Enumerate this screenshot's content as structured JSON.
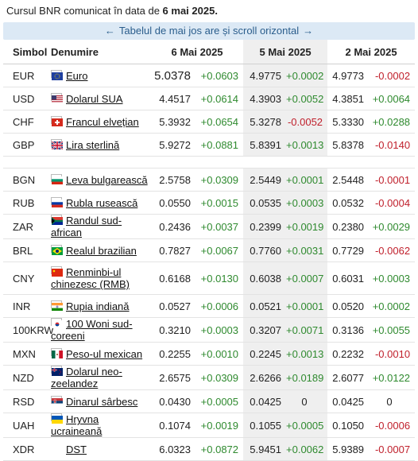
{
  "caption": {
    "prefix": "Cursul BNR comunicat în data de ",
    "date": "6 mai 2025."
  },
  "scroll_note": {
    "left_arrow": "←",
    "text": "Tabelul de mai jos are și scroll orizontal",
    "right_arrow": "→"
  },
  "headers": {
    "symbol": "Simbol",
    "name": "Denumire",
    "d1": "6 Mai 2025",
    "d2": "5 Mai 2025",
    "d3": "2 Mai 2025"
  },
  "group1": [
    {
      "sym": "EUR",
      "name": "Euro",
      "flag": "eu-flag",
      "v1": "5.0378",
      "c1": "+0.0603",
      "v2": "4.9775",
      "c2": "+0.0002",
      "v3": "4.9773",
      "c3": "-0.0002"
    },
    {
      "sym": "USD",
      "name": "Dolarul SUA",
      "flag": "us-flag",
      "v1": "4.4517",
      "c1": "+0.0614",
      "v2": "4.3903",
      "c2": "+0.0052",
      "v3": "4.3851",
      "c3": "+0.0064"
    },
    {
      "sym": "CHF",
      "name": "Francul elvețian",
      "flag": "ch-flag",
      "v1": "5.3932",
      "c1": "+0.0654",
      "v2": "5.3278",
      "c2": "-0.0052",
      "v3": "5.3330",
      "c3": "+0.0288"
    },
    {
      "sym": "GBP",
      "name": "Lira sterlină",
      "flag": "gb-flag",
      "v1": "5.9272",
      "c1": "+0.0881",
      "v2": "5.8391",
      "c2": "+0.0013",
      "v3": "5.8378",
      "c3": "-0.0140"
    }
  ],
  "group2": [
    {
      "sym": "BGN",
      "name": "Leva bulgarească",
      "flag": "bg-flag",
      "v1": "2.5758",
      "c1": "+0.0309",
      "v2": "2.5449",
      "c2": "+0.0001",
      "v3": "2.5448",
      "c3": "-0.0001"
    },
    {
      "sym": "RUB",
      "name": "Rubla rusească",
      "flag": "ru-flag",
      "v1": "0.0550",
      "c1": "+0.0015",
      "v2": "0.0535",
      "c2": "+0.0003",
      "v3": "0.0532",
      "c3": "-0.0004"
    },
    {
      "sym": "ZAR",
      "name": "Randul sud-african",
      "flag": "za-flag",
      "v1": "0.2436",
      "c1": "+0.0037",
      "v2": "0.2399",
      "c2": "+0.0019",
      "v3": "0.2380",
      "c3": "+0.0029"
    },
    {
      "sym": "BRL",
      "name": "Realul brazilian",
      "flag": "br-flag",
      "v1": "0.7827",
      "c1": "+0.0067",
      "v2": "0.7760",
      "c2": "+0.0031",
      "v3": "0.7729",
      "c3": "-0.0062"
    },
    {
      "sym": "CNY",
      "name": "Renminbi-ul chinezesc (RMB)",
      "flag": "cn-flag",
      "v1": "0.6168",
      "c1": "+0.0130",
      "v2": "0.6038",
      "c2": "+0.0007",
      "v3": "0.6031",
      "c3": "+0.0003"
    },
    {
      "sym": "INR",
      "name": "Rupia indiană",
      "flag": "in-flag",
      "v1": "0.0527",
      "c1": "+0.0006",
      "v2": "0.0521",
      "c2": "+0.0001",
      "v3": "0.0520",
      "c3": "+0.0002"
    },
    {
      "sym": "100KRW",
      "name": "100 Woni sud-coreeni",
      "flag": "kr-flag",
      "v1": "0.3210",
      "c1": "+0.0003",
      "v2": "0.3207",
      "c2": "+0.0071",
      "v3": "0.3136",
      "c3": "+0.0055"
    },
    {
      "sym": "MXN",
      "name": "Peso-ul mexican",
      "flag": "mx-flag",
      "v1": "0.2255",
      "c1": "+0.0010",
      "v2": "0.2245",
      "c2": "+0.0013",
      "v3": "0.2232",
      "c3": "-0.0010"
    },
    {
      "sym": "NZD",
      "name": "Dolarul neo-zeelandez",
      "flag": "nz-flag",
      "v1": "2.6575",
      "c1": "+0.0309",
      "v2": "2.6266",
      "c2": "+0.0189",
      "v3": "2.6077",
      "c3": "+0.0122"
    },
    {
      "sym": "RSD",
      "name": "Dinarul sârbesc",
      "flag": "rs-flag",
      "v1": "0.0430",
      "c1": "+0.0005",
      "v2": "0.0425",
      "c2": "0",
      "v3": "0.0425",
      "c3": "0"
    },
    {
      "sym": "UAH",
      "name": "Hryvna ucraineană",
      "flag": "ua-flag",
      "v1": "0.1074",
      "c1": "+0.0019",
      "v2": "0.1055",
      "c2": "+0.0005",
      "v3": "0.1050",
      "c3": "-0.0006"
    },
    {
      "sym": "XDR",
      "name": "DST",
      "flag": "",
      "v1": "6.0323",
      "c1": "+0.0872",
      "v2": "5.9451",
      "c2": "+0.0062",
      "v3": "5.9389",
      "c3": "-0.0007"
    }
  ],
  "colors": {
    "positive": "#2f8a2f",
    "negative": "#c0202c",
    "note_bg": "#dce9f5",
    "shade": "#efefef"
  }
}
